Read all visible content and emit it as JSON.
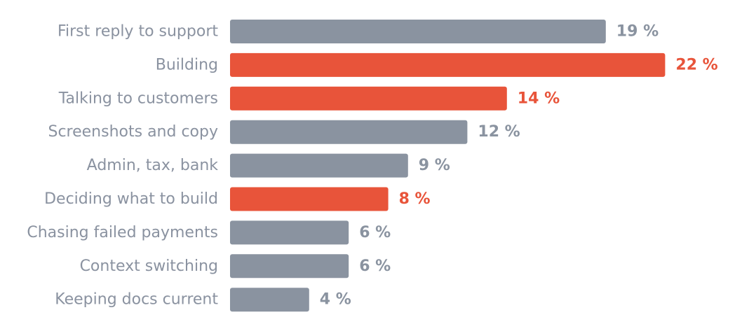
{
  "chart_data": {
    "type": "bar",
    "orientation": "horizontal",
    "title": "",
    "xlabel": "",
    "ylabel": "",
    "xlim": [
      0,
      22
    ],
    "grid": false,
    "legend": "none",
    "value_suffix": " %",
    "colors": {
      "default": "#8a93a0",
      "highlight": "#e8543a"
    },
    "categories": [
      "First reply to support",
      "Building",
      "Talking to customers",
      "Screenshots and copy",
      "Admin, tax, bank",
      "Deciding what to build",
      "Chasing failed payments",
      "Context switching",
      "Keeping docs current"
    ],
    "values": [
      19,
      22,
      14,
      12,
      9,
      8,
      6,
      6,
      4
    ],
    "value_labels": [
      "19 %",
      "22 %",
      "14 %",
      "12 %",
      "9 %",
      "8 %",
      "6 %",
      "6 %",
      "4 %"
    ],
    "highlighted": [
      false,
      true,
      true,
      false,
      false,
      true,
      false,
      false,
      false
    ]
  }
}
